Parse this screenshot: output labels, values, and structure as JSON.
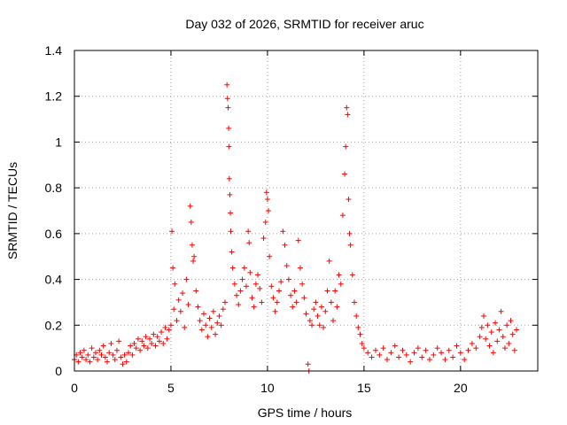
{
  "chart_data": {
    "type": "scatter",
    "title": "Day 032 of 2026, SRMTID for receiver aruc",
    "xlabel": "GPS time / hours",
    "ylabel": "SRMTID / TECUs",
    "xlim": [
      0,
      24
    ],
    "ylim": [
      0,
      1.4
    ],
    "x_ticks": [
      0,
      5,
      10,
      15,
      20
    ],
    "x_tick_labels": [
      "0",
      "5",
      "10",
      "15",
      "20"
    ],
    "y_ticks": [
      0,
      0.2,
      0.4,
      0.6,
      0.8,
      1,
      1.2,
      1.4
    ],
    "y_tick_labels": [
      "0",
      "0.2",
      "0.4",
      "0.6",
      "0.8",
      "1",
      "1.2",
      "1.4"
    ],
    "grid": true,
    "marker": "+",
    "marker_color": "#ff0000",
    "series": [
      {
        "name": "SRMTID",
        "points": [
          [
            0.0,
            0.05
          ],
          [
            0.1,
            0.07
          ],
          [
            0.2,
            0.04
          ],
          [
            0.3,
            0.08
          ],
          [
            0.4,
            0.06
          ],
          [
            0.5,
            0.09
          ],
          [
            0.6,
            0.05
          ],
          [
            0.7,
            0.07
          ],
          [
            0.8,
            0.04
          ],
          [
            0.9,
            0.1
          ],
          [
            1.0,
            0.06
          ],
          [
            1.1,
            0.08
          ],
          [
            1.2,
            0.05
          ],
          [
            1.3,
            0.09
          ],
          [
            1.4,
            0.07
          ],
          [
            1.5,
            0.11
          ],
          [
            1.6,
            0.06
          ],
          [
            1.7,
            0.04
          ],
          [
            1.8,
            0.08
          ],
          [
            1.9,
            0.12
          ],
          [
            2.0,
            0.07
          ],
          [
            2.1,
            0.05
          ],
          [
            2.2,
            0.09
          ],
          [
            2.3,
            0.13
          ],
          [
            2.4,
            0.06
          ],
          [
            2.5,
            0.03
          ],
          [
            2.6,
            0.07
          ],
          [
            2.7,
            0.04
          ],
          [
            2.8,
            0.08
          ],
          [
            2.9,
            0.11
          ],
          [
            3.0,
            0.07
          ],
          [
            3.1,
            0.12
          ],
          [
            3.2,
            0.1
          ],
          [
            3.3,
            0.14
          ],
          [
            3.4,
            0.09
          ],
          [
            3.5,
            0.13
          ],
          [
            3.6,
            0.11
          ],
          [
            3.7,
            0.15
          ],
          [
            3.8,
            0.1
          ],
          [
            3.9,
            0.14
          ],
          [
            4.0,
            0.12
          ],
          [
            4.1,
            0.16
          ],
          [
            4.2,
            0.11
          ],
          [
            4.3,
            0.15
          ],
          [
            4.4,
            0.13
          ],
          [
            4.5,
            0.17
          ],
          [
            4.6,
            0.12
          ],
          [
            4.7,
            0.19
          ],
          [
            4.8,
            0.14
          ],
          [
            4.9,
            0.18
          ],
          [
            5.0,
            0.2
          ],
          [
            5.05,
            0.61
          ],
          [
            5.1,
            0.45
          ],
          [
            5.15,
            0.27
          ],
          [
            5.2,
            0.38
          ],
          [
            5.3,
            0.22
          ],
          [
            5.4,
            0.31
          ],
          [
            5.5,
            0.26
          ],
          [
            5.6,
            0.34
          ],
          [
            5.7,
            0.19
          ],
          [
            5.8,
            0.4
          ],
          [
            5.9,
            0.29
          ],
          [
            6.0,
            0.72
          ],
          [
            6.05,
            0.65
          ],
          [
            6.1,
            0.55
          ],
          [
            6.15,
            0.48
          ],
          [
            6.2,
            0.5
          ],
          [
            6.3,
            0.35
          ],
          [
            6.4,
            0.28
          ],
          [
            6.5,
            0.22
          ],
          [
            6.6,
            0.18
          ],
          [
            6.7,
            0.25
          ],
          [
            6.8,
            0.2
          ],
          [
            6.9,
            0.15
          ],
          [
            7.0,
            0.23
          ],
          [
            7.1,
            0.19
          ],
          [
            7.2,
            0.26
          ],
          [
            7.3,
            0.16
          ],
          [
            7.4,
            0.21
          ],
          [
            7.5,
            0.24
          ],
          [
            7.6,
            0.2
          ],
          [
            7.7,
            0.27
          ],
          [
            7.8,
            0.3
          ],
          [
            7.9,
            1.25
          ],
          [
            7.93,
            1.19
          ],
          [
            7.96,
            1.15
          ],
          [
            7.99,
            1.06
          ],
          [
            8.0,
            0.98
          ],
          [
            8.02,
            0.84
          ],
          [
            8.05,
            0.77
          ],
          [
            8.08,
            0.69
          ],
          [
            8.1,
            0.61
          ],
          [
            8.15,
            0.52
          ],
          [
            8.2,
            0.45
          ],
          [
            8.3,
            0.38
          ],
          [
            8.4,
            0.33
          ],
          [
            8.5,
            0.29
          ],
          [
            8.6,
            0.35
          ],
          [
            8.7,
            0.4
          ],
          [
            8.8,
            0.45
          ],
          [
            8.9,
            0.37
          ],
          [
            9.0,
            0.61
          ],
          [
            9.05,
            0.56
          ],
          [
            9.1,
            0.43
          ],
          [
            9.2,
            0.32
          ],
          [
            9.3,
            0.28
          ],
          [
            9.4,
            0.38
          ],
          [
            9.5,
            0.42
          ],
          [
            9.6,
            0.36
          ],
          [
            9.7,
            0.3
          ],
          [
            9.8,
            0.58
          ],
          [
            9.9,
            0.65
          ],
          [
            9.95,
            0.78
          ],
          [
            10.0,
            0.75
          ],
          [
            10.05,
            0.7
          ],
          [
            10.1,
            0.5
          ],
          [
            10.2,
            0.37
          ],
          [
            10.3,
            0.32
          ],
          [
            10.4,
            0.26
          ],
          [
            10.5,
            0.3
          ],
          [
            10.6,
            0.35
          ],
          [
            10.7,
            0.39
          ],
          [
            10.8,
            0.61
          ],
          [
            10.9,
            0.55
          ],
          [
            11.0,
            0.46
          ],
          [
            11.1,
            0.4
          ],
          [
            11.2,
            0.33
          ],
          [
            11.3,
            0.28
          ],
          [
            11.4,
            0.35
          ],
          [
            11.5,
            0.3
          ],
          [
            11.6,
            0.57
          ],
          [
            11.7,
            0.45
          ],
          [
            11.8,
            0.38
          ],
          [
            11.9,
            0.32
          ],
          [
            12.0,
            0.25
          ],
          [
            12.1,
            0.03
          ],
          [
            12.15,
            0.0
          ],
          [
            12.2,
            0.22
          ],
          [
            12.3,
            0.2
          ],
          [
            12.4,
            0.27
          ],
          [
            12.5,
            0.3
          ],
          [
            12.6,
            0.24
          ],
          [
            12.7,
            0.2
          ],
          [
            12.8,
            0.28
          ],
          [
            12.9,
            0.19
          ],
          [
            13.0,
            0.26
          ],
          [
            13.1,
            0.35
          ],
          [
            13.2,
            0.48
          ],
          [
            13.3,
            0.3
          ],
          [
            13.4,
            0.22
          ],
          [
            13.5,
            0.35
          ],
          [
            13.6,
            0.28
          ],
          [
            13.7,
            0.42
          ],
          [
            13.8,
            0.38
          ],
          [
            13.9,
            0.68
          ],
          [
            14.0,
            0.86
          ],
          [
            14.05,
            0.98
          ],
          [
            14.1,
            1.15
          ],
          [
            14.15,
            1.12
          ],
          [
            14.2,
            0.75
          ],
          [
            14.25,
            0.6
          ],
          [
            14.3,
            0.55
          ],
          [
            14.4,
            0.42
          ],
          [
            14.5,
            0.3
          ],
          [
            14.6,
            0.24
          ],
          [
            14.7,
            0.19
          ],
          [
            14.8,
            0.16
          ],
          [
            14.9,
            0.12
          ],
          [
            15.0,
            0.1
          ],
          [
            15.2,
            0.08
          ],
          [
            15.4,
            0.06
          ],
          [
            15.6,
            0.09
          ],
          [
            15.8,
            0.07
          ],
          [
            16.0,
            0.1
          ],
          [
            16.2,
            0.05
          ],
          [
            16.4,
            0.08
          ],
          [
            16.6,
            0.11
          ],
          [
            16.8,
            0.06
          ],
          [
            17.0,
            0.09
          ],
          [
            17.2,
            0.07
          ],
          [
            17.4,
            0.04
          ],
          [
            17.6,
            0.08
          ],
          [
            17.8,
            0.1
          ],
          [
            18.0,
            0.06
          ],
          [
            18.2,
            0.09
          ],
          [
            18.4,
            0.05
          ],
          [
            18.6,
            0.07
          ],
          [
            18.8,
            0.1
          ],
          [
            19.0,
            0.08
          ],
          [
            19.2,
            0.05
          ],
          [
            19.4,
            0.09
          ],
          [
            19.6,
            0.06
          ],
          [
            19.8,
            0.11
          ],
          [
            20.0,
            0.08
          ],
          [
            20.2,
            0.05
          ],
          [
            20.4,
            0.09
          ],
          [
            20.6,
            0.12
          ],
          [
            20.8,
            0.1
          ],
          [
            21.0,
            0.15
          ],
          [
            21.1,
            0.19
          ],
          [
            21.2,
            0.24
          ],
          [
            21.3,
            0.14
          ],
          [
            21.4,
            0.2
          ],
          [
            21.5,
            0.11
          ],
          [
            21.6,
            0.17
          ],
          [
            21.7,
            0.08
          ],
          [
            21.8,
            0.21
          ],
          [
            21.9,
            0.13
          ],
          [
            22.0,
            0.18
          ],
          [
            22.1,
            0.26
          ],
          [
            22.2,
            0.15
          ],
          [
            22.3,
            0.1
          ],
          [
            22.4,
            0.2
          ],
          [
            22.5,
            0.12
          ],
          [
            22.6,
            0.22
          ],
          [
            22.7,
            0.16
          ],
          [
            22.8,
            0.09
          ],
          [
            22.9,
            0.18
          ]
        ]
      }
    ]
  }
}
